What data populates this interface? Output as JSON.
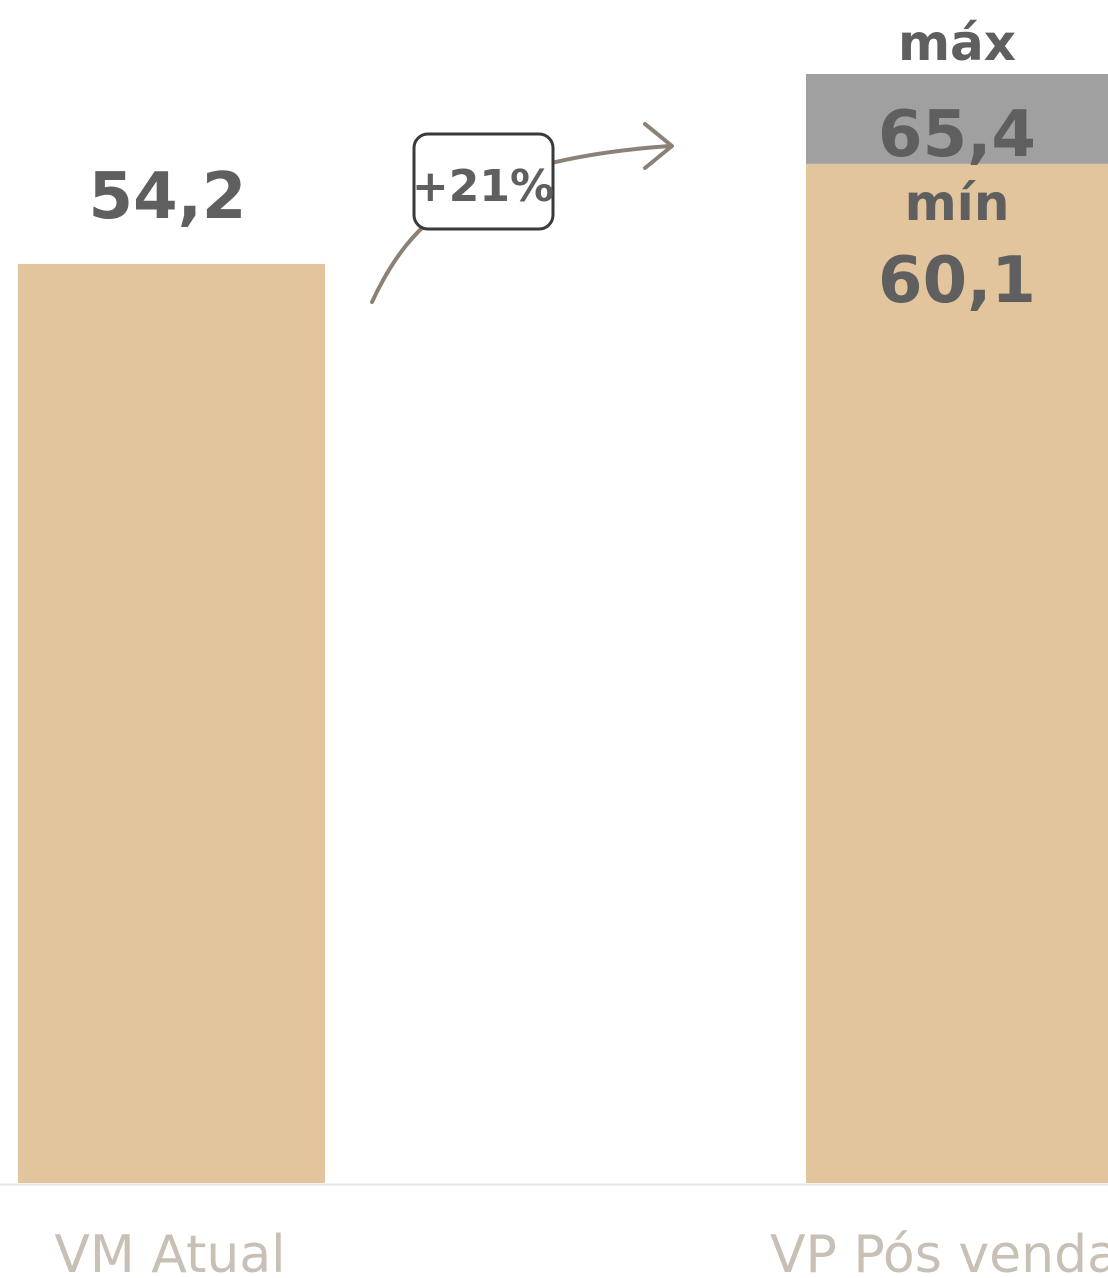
{
  "chart_data": {
    "type": "bar",
    "categories": [
      "VM Atual",
      "VP Pós vendas"
    ],
    "series": [
      {
        "values": [
          54.2,
          60.1
        ]
      },
      {
        "values": [
          null,
          5.3
        ]
      }
    ],
    "data_labels": {
      "vm_atual": "54,2",
      "vp_min_word": "mín",
      "vp_min_value": "60,1",
      "vp_max_word": "máx",
      "vp_max_value": "65,4"
    },
    "vp_min": 60.1,
    "vp_max": 65.4,
    "growth_annotation": "+21%",
    "title": "",
    "xlabel": "",
    "ylabel": "",
    "ylim": [
      0,
      65.4
    ],
    "grid": false,
    "legend": "none",
    "colors": {
      "base": "#e2c59c",
      "range": "#a0a0a0",
      "label": "#5f5f5f",
      "tick": "#c8bfb5",
      "axis": "#e6e6e6",
      "arrow": "#8b8176",
      "box_border": "#3a3a3a"
    }
  }
}
